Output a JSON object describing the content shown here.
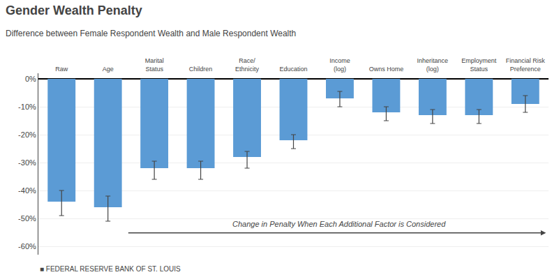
{
  "chart_data": {
    "type": "bar",
    "title": "Gender Wealth Penalty",
    "subtitle": "Difference between Female Respondent Wealth and Male Respondent Wealth",
    "categories": [
      "Raw",
      "Age",
      "Marital\nStatus",
      "Children",
      "Race/\nEthnicity",
      "Education",
      "Income\n(log)",
      "Owns Home",
      "Inheritance\n(log)",
      "Employment\nStatus",
      "Financial Risk\nPreference"
    ],
    "values": [
      -44,
      -46,
      -32,
      -32,
      -28,
      -22,
      -7,
      -12,
      -13,
      -13,
      -9
    ],
    "errors_low": [
      5,
      5,
      4,
      4,
      4,
      3,
      3,
      3,
      3,
      3,
      3
    ],
    "errors_high": [
      4,
      4,
      2.5,
      2.5,
      2,
      2,
      2.5,
      2,
      2,
      2,
      3
    ],
    "color": "#5b9bd5",
    "ylim": [
      -63,
      2
    ],
    "yticks": [
      {
        "value": 0,
        "label": "0%"
      },
      {
        "value": -10,
        "label": "-10%"
      },
      {
        "value": -20,
        "label": "-20%"
      },
      {
        "value": -30,
        "label": "-30%"
      },
      {
        "value": -40,
        "label": "-40%"
      },
      {
        "value": -50,
        "label": "-50%"
      },
      {
        "value": -60,
        "label": "-60%"
      }
    ],
    "grid": true,
    "annotations": [
      "Change in Penalty When Each Additional Factor is Considered",
      "■ FEDERAL RESERVE BANK OF ST. LOUIS"
    ]
  }
}
